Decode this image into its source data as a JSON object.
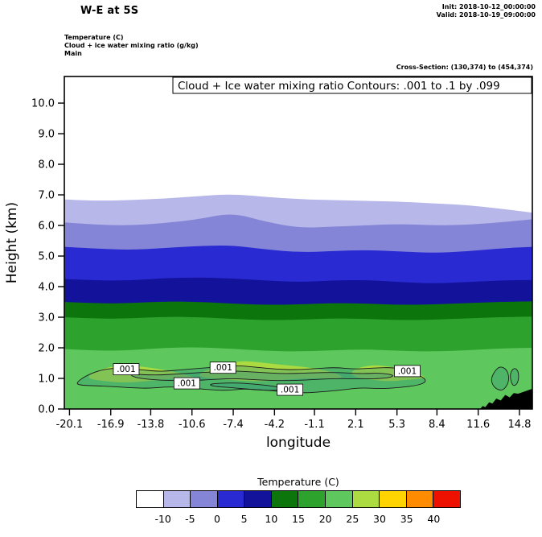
{
  "header": {
    "title": "W-E at 5S",
    "init_line": "Init: 2018-10-12_00:00:00",
    "valid_line": "Valid: 2018-10-19_09:00:00",
    "meta_line1": "Temperature  (C)",
    "meta_line2": "Cloud + ice water mixing ratio  (g/kg)",
    "meta_line3": "Main",
    "cross_section": "Cross-Section: (130,374) to (454,374)"
  },
  "chart_data": {
    "type": "filled-contour-cross-section",
    "title": "W-E at 5S",
    "xlabel": "longitude",
    "ylabel": "Height (km)",
    "annotation": "Cloud + Ice water mixing ratio Contours: .001 to .1 by .099",
    "x_range": [
      -20.5,
      15.8
    ],
    "y_range": [
      0,
      10.87
    ],
    "x_ticks": [
      -20.1,
      -16.9,
      -13.8,
      -10.6,
      -7.4,
      -4.2,
      -1.1,
      2.1,
      5.3,
      8.4,
      11.6,
      14.8
    ],
    "y_ticks": [
      0,
      1,
      2,
      3,
      4,
      5,
      6,
      7,
      8,
      9,
      10
    ],
    "boundary_x": [
      -20.5,
      -17.9,
      -15.3,
      -12.7,
      -10.1,
      -7.5,
      -4.9,
      -2.3,
      0.3,
      2.9,
      5.5,
      8.1,
      10.7,
      13.3,
      15.8
    ],
    "temp_boundaries": [
      {
        "level_c": -10,
        "fill_below": "#b7b7ea",
        "heights_km": [
          6.85,
          6.8,
          6.83,
          6.88,
          6.96,
          7.03,
          6.93,
          6.86,
          6.83,
          6.8,
          6.78,
          6.72,
          6.67,
          6.55,
          6.42
        ]
      },
      {
        "level_c": -5,
        "fill_below": "#8585d8",
        "heights_km": [
          6.1,
          6.02,
          6.0,
          6.08,
          6.2,
          6.42,
          6.12,
          5.92,
          5.96,
          6.0,
          6.05,
          6.0,
          6.02,
          6.1,
          6.2
        ]
      },
      {
        "level_c": 0,
        "fill_below": "#2a2ad2",
        "heights_km": [
          5.3,
          5.24,
          5.2,
          5.26,
          5.33,
          5.35,
          5.22,
          5.12,
          5.16,
          5.2,
          5.15,
          5.1,
          5.15,
          5.25,
          5.3
        ]
      },
      {
        "level_c": 5,
        "fill_below": "#12129a",
        "heights_km": [
          4.25,
          4.2,
          4.2,
          4.28,
          4.3,
          4.27,
          4.2,
          4.15,
          4.2,
          4.22,
          4.15,
          4.1,
          4.15,
          4.2,
          4.22
        ]
      },
      {
        "level_c": 10,
        "fill_below": "#0c750c",
        "heights_km": [
          3.5,
          3.45,
          3.46,
          3.52,
          3.5,
          3.45,
          3.4,
          3.42,
          3.46,
          3.45,
          3.4,
          3.42,
          3.46,
          3.5,
          3.52
        ]
      },
      {
        "level_c": 15,
        "fill_below": "#2da32d",
        "heights_km": [
          3.0,
          2.95,
          2.96,
          3.02,
          3.0,
          2.95,
          2.9,
          2.92,
          2.96,
          2.95,
          2.9,
          2.92,
          2.96,
          3.0,
          3.02
        ]
      },
      {
        "level_c": 20,
        "fill_below": "#5ec85e",
        "heights_km": [
          1.96,
          1.9,
          1.92,
          2.0,
          2.02,
          1.97,
          1.9,
          1.88,
          1.92,
          1.95,
          1.9,
          1.88,
          1.92,
          1.98,
          2.0
        ]
      }
    ],
    "warm_patches": [
      {
        "color": "#abdb40",
        "x": [
          -18.6,
          -17.2,
          -15.8,
          -14.4,
          -13.0,
          -11.6,
          -10.4
        ],
        "top": [
          1.12,
          1.36,
          1.44,
          1.38,
          1.3,
          1.18,
          1.04
        ],
        "bottom": [
          0.98,
          0.9,
          0.86,
          0.9,
          0.96,
          1.0,
          1.0
        ]
      },
      {
        "color": "#abdb40",
        "x": [
          -10.0,
          -8.4,
          -6.8,
          -5.2,
          -3.6,
          -2.0,
          -0.4,
          1.0
        ],
        "top": [
          1.18,
          1.42,
          1.58,
          1.52,
          1.44,
          1.38,
          1.28,
          1.1
        ],
        "bottom": [
          1.04,
          0.98,
          0.92,
          0.9,
          0.95,
          1.0,
          1.0,
          1.0
        ]
      },
      {
        "color": "#abdb40",
        "x": [
          1.8,
          3.2,
          4.6,
          6.0,
          7.4
        ],
        "top": [
          1.28,
          1.44,
          1.4,
          1.28,
          1.08
        ],
        "bottom": [
          1.06,
          0.96,
          0.9,
          0.95,
          1.0
        ]
      }
    ],
    "cloud": {
      "contour_level": "0.001",
      "label": ".001",
      "tint_color": "#2f8f80",
      "labels_at": [
        {
          "lon": -15.7,
          "km": 1.3
        },
        {
          "lon": -11.0,
          "km": 0.84
        },
        {
          "lon": -8.2,
          "km": 1.35
        },
        {
          "lon": -3.0,
          "km": 0.63
        },
        {
          "lon": 6.1,
          "km": 1.24
        }
      ],
      "loops": [
        [
          [
            -19.6,
            0.85
          ],
          [
            -18.8,
            1.1
          ],
          [
            -17.5,
            1.3
          ],
          [
            -16.0,
            1.35
          ],
          [
            -14.5,
            1.28
          ],
          [
            -13.0,
            1.22
          ],
          [
            -11.5,
            1.28
          ],
          [
            -10.0,
            1.33
          ],
          [
            -8.5,
            1.38
          ],
          [
            -7.0,
            1.42
          ],
          [
            -5.5,
            1.36
          ],
          [
            -4.0,
            1.3
          ],
          [
            -2.5,
            1.28
          ],
          [
            -1.0,
            1.32
          ],
          [
            0.5,
            1.36
          ],
          [
            2.0,
            1.3
          ],
          [
            3.5,
            1.34
          ],
          [
            5.0,
            1.36
          ],
          [
            6.2,
            1.25
          ],
          [
            7.3,
            1.05
          ],
          [
            7.6,
            0.9
          ],
          [
            7.0,
            0.78
          ],
          [
            5.5,
            0.7
          ],
          [
            4.0,
            0.66
          ],
          [
            2.5,
            0.7
          ],
          [
            1.0,
            0.62
          ],
          [
            -0.5,
            0.56
          ],
          [
            -2.0,
            0.52
          ],
          [
            -3.5,
            0.56
          ],
          [
            -5.0,
            0.62
          ],
          [
            -6.5,
            0.66
          ],
          [
            -8.0,
            0.6
          ],
          [
            -9.5,
            0.64
          ],
          [
            -11.0,
            0.7
          ],
          [
            -12.5,
            0.73
          ],
          [
            -14.0,
            0.67
          ],
          [
            -15.5,
            0.7
          ],
          [
            -17.0,
            0.74
          ],
          [
            -18.3,
            0.76
          ],
          [
            -19.3,
            0.78
          ]
        ],
        [
          [
            -15.5,
            1.15
          ],
          [
            -13.5,
            1.1
          ],
          [
            -11.5,
            1.15
          ],
          [
            -9.5,
            1.2
          ],
          [
            -7.5,
            1.25
          ],
          [
            -5.5,
            1.2
          ],
          [
            -3.5,
            1.15
          ],
          [
            -1.5,
            1.18
          ],
          [
            0.5,
            1.2
          ],
          [
            2.5,
            1.15
          ],
          [
            4.0,
            1.18
          ],
          [
            5.2,
            1.1
          ],
          [
            4.5,
            1.0
          ],
          [
            2.5,
            0.98
          ],
          [
            0.5,
            1.0
          ],
          [
            -1.5,
            0.95
          ],
          [
            -3.5,
            0.92
          ],
          [
            -5.5,
            0.95
          ],
          [
            -7.5,
            1.0
          ],
          [
            -9.5,
            0.95
          ],
          [
            -11.5,
            0.92
          ],
          [
            -13.5,
            0.95
          ],
          [
            -15.0,
            1.02
          ]
        ],
        [
          [
            -9.3,
            0.82
          ],
          [
            -7.5,
            0.86
          ],
          [
            -5.8,
            0.82
          ],
          [
            -4.2,
            0.74
          ],
          [
            -3.2,
            0.66
          ],
          [
            -4.2,
            0.6
          ],
          [
            -5.8,
            0.63
          ],
          [
            -7.5,
            0.7
          ],
          [
            -9.0,
            0.74
          ]
        ],
        [
          [
            12.6,
            1.0
          ],
          [
            12.9,
            1.25
          ],
          [
            13.3,
            1.4
          ],
          [
            13.8,
            1.3
          ],
          [
            14.0,
            1.05
          ],
          [
            13.9,
            0.8
          ],
          [
            13.5,
            0.6
          ],
          [
            13.0,
            0.65
          ],
          [
            12.7,
            0.8
          ]
        ],
        [
          [
            14.1,
            1.2
          ],
          [
            14.4,
            1.35
          ],
          [
            14.7,
            1.25
          ],
          [
            14.75,
            1.0
          ],
          [
            14.6,
            0.8
          ],
          [
            14.3,
            0.75
          ],
          [
            14.1,
            0.95
          ]
        ]
      ]
    },
    "terrain": [
      [
        11.75,
        0
      ],
      [
        11.95,
        0.1
      ],
      [
        12.15,
        0.06
      ],
      [
        12.45,
        0.22
      ],
      [
        12.7,
        0.18
      ],
      [
        13.0,
        0.34
      ],
      [
        13.35,
        0.28
      ],
      [
        13.7,
        0.46
      ],
      [
        14.05,
        0.38
      ],
      [
        14.35,
        0.52
      ],
      [
        14.7,
        0.5
      ],
      [
        15.8,
        0.66
      ],
      [
        15.8,
        0
      ]
    ],
    "colorbar": {
      "title": "Temperature  (C)",
      "cell_colors": [
        "#ffffff",
        "#b7b7ea",
        "#8585d8",
        "#2a2ad2",
        "#12129a",
        "#0c750c",
        "#2da32d",
        "#5ec85e",
        "#abdb40",
        "#ffd400",
        "#ff8c00",
        "#ee1100"
      ],
      "tick_labels": [
        "-10",
        "-5",
        "0",
        "5",
        "10",
        "15",
        "20",
        "25",
        "30",
        "35",
        "40"
      ]
    }
  }
}
